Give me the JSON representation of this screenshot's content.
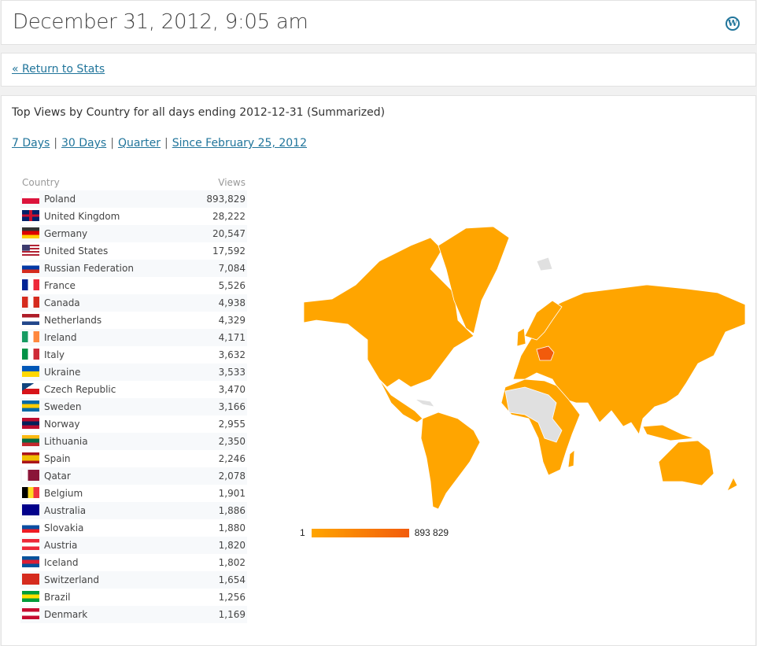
{
  "header": {
    "title": "December 31, 2012, 9:05 am",
    "logo_icon": "wordpress-icon"
  },
  "nav": {
    "return_link": "« Return to Stats"
  },
  "report": {
    "title": "Top Views by Country for all days ending 2012-12-31 (Summarized)",
    "periods": [
      {
        "label": "7 Days"
      },
      {
        "label": "30 Days"
      },
      {
        "label": "Quarter"
      },
      {
        "label": "Since February 25, 2012"
      }
    ],
    "separator": "|",
    "columns": {
      "country": "Country",
      "views": "Views"
    },
    "rows": [
      {
        "country": "Poland",
        "views": "893,829",
        "flag": [
          "#ffffff",
          "#dc143c"
        ],
        "dir": "h"
      },
      {
        "country": "United Kingdom",
        "views": "28,222",
        "flag": [
          "#012169",
          "#c8102e",
          "#012169"
        ],
        "dir": "uk"
      },
      {
        "country": "Germany",
        "views": "20,547",
        "flag": [
          "#333333",
          "#dd0000",
          "#ffce00"
        ],
        "dir": "h"
      },
      {
        "country": "United States",
        "views": "17,592",
        "flag": [
          "#b22234",
          "#ffffff",
          "#b22234",
          "#ffffff",
          "#b22234"
        ],
        "dir": "us"
      },
      {
        "country": "Russian Federation",
        "views": "7,084",
        "flag": [
          "#ffffff",
          "#0039a6",
          "#d52b1e"
        ],
        "dir": "h"
      },
      {
        "country": "France",
        "views": "5,526",
        "flag": [
          "#002395",
          "#ffffff",
          "#ed2939"
        ],
        "dir": "v"
      },
      {
        "country": "Canada",
        "views": "4,938",
        "flag": [
          "#d52b1e",
          "#ffffff",
          "#d52b1e"
        ],
        "dir": "v"
      },
      {
        "country": "Netherlands",
        "views": "4,329",
        "flag": [
          "#ae1c28",
          "#ffffff",
          "#21468b"
        ],
        "dir": "h"
      },
      {
        "country": "Ireland",
        "views": "4,171",
        "flag": [
          "#169b62",
          "#ffffff",
          "#ff883e"
        ],
        "dir": "v"
      },
      {
        "country": "Italy",
        "views": "3,632",
        "flag": [
          "#009246",
          "#ffffff",
          "#ce2b37"
        ],
        "dir": "v"
      },
      {
        "country": "Ukraine",
        "views": "3,533",
        "flag": [
          "#0057b7",
          "#ffd700"
        ],
        "dir": "h"
      },
      {
        "country": "Czech Republic",
        "views": "3,470",
        "flag": [
          "#ffffff",
          "#d7141a"
        ],
        "dir": "cz"
      },
      {
        "country": "Sweden",
        "views": "3,166",
        "flag": [
          "#006aa7",
          "#fecc00",
          "#006aa7"
        ],
        "dir": "h"
      },
      {
        "country": "Norway",
        "views": "2,955",
        "flag": [
          "#ba0c2f",
          "#00205b",
          "#ba0c2f"
        ],
        "dir": "h"
      },
      {
        "country": "Lithuania",
        "views": "2,350",
        "flag": [
          "#fdb913",
          "#006a44",
          "#c1272d"
        ],
        "dir": "h"
      },
      {
        "country": "Spain",
        "views": "2,246",
        "flag": [
          "#aa151b",
          "#f1bf00",
          "#f1bf00",
          "#aa151b"
        ],
        "dir": "h"
      },
      {
        "country": "Qatar",
        "views": "2,078",
        "flag": [
          "#ffffff",
          "#8a1538",
          "#8a1538"
        ],
        "dir": "v"
      },
      {
        "country": "Belgium",
        "views": "1,901",
        "flag": [
          "#000000",
          "#fdda24",
          "#ef3340"
        ],
        "dir": "v"
      },
      {
        "country": "Australia",
        "views": "1,886",
        "flag": [
          "#00008b",
          "#00008b"
        ],
        "dir": "h"
      },
      {
        "country": "Slovakia",
        "views": "1,880",
        "flag": [
          "#ffffff",
          "#0b4ea2",
          "#ee1c25"
        ],
        "dir": "h"
      },
      {
        "country": "Austria",
        "views": "1,820",
        "flag": [
          "#ed2939",
          "#ffffff",
          "#ed2939"
        ],
        "dir": "h"
      },
      {
        "country": "Iceland",
        "views": "1,802",
        "flag": [
          "#02529c",
          "#dc1e35",
          "#02529c"
        ],
        "dir": "h"
      },
      {
        "country": "Switzerland",
        "views": "1,654",
        "flag": [
          "#d52b1e",
          "#d52b1e"
        ],
        "dir": "h"
      },
      {
        "country": "Brazil",
        "views": "1,256",
        "flag": [
          "#009c3b",
          "#ffdf00",
          "#009c3b"
        ],
        "dir": "h"
      },
      {
        "country": "Denmark",
        "views": "1,169",
        "flag": [
          "#c60c30",
          "#ffffff",
          "#c60c30"
        ],
        "dir": "h"
      }
    ],
    "map": {
      "highlight_country": "Poland",
      "colors": {
        "low": "#ffa500",
        "high": "#f25b0c",
        "no_data": "#e0e0e0",
        "border": "#ffffff"
      }
    },
    "legend": {
      "min": "1",
      "max": "893 829"
    }
  }
}
